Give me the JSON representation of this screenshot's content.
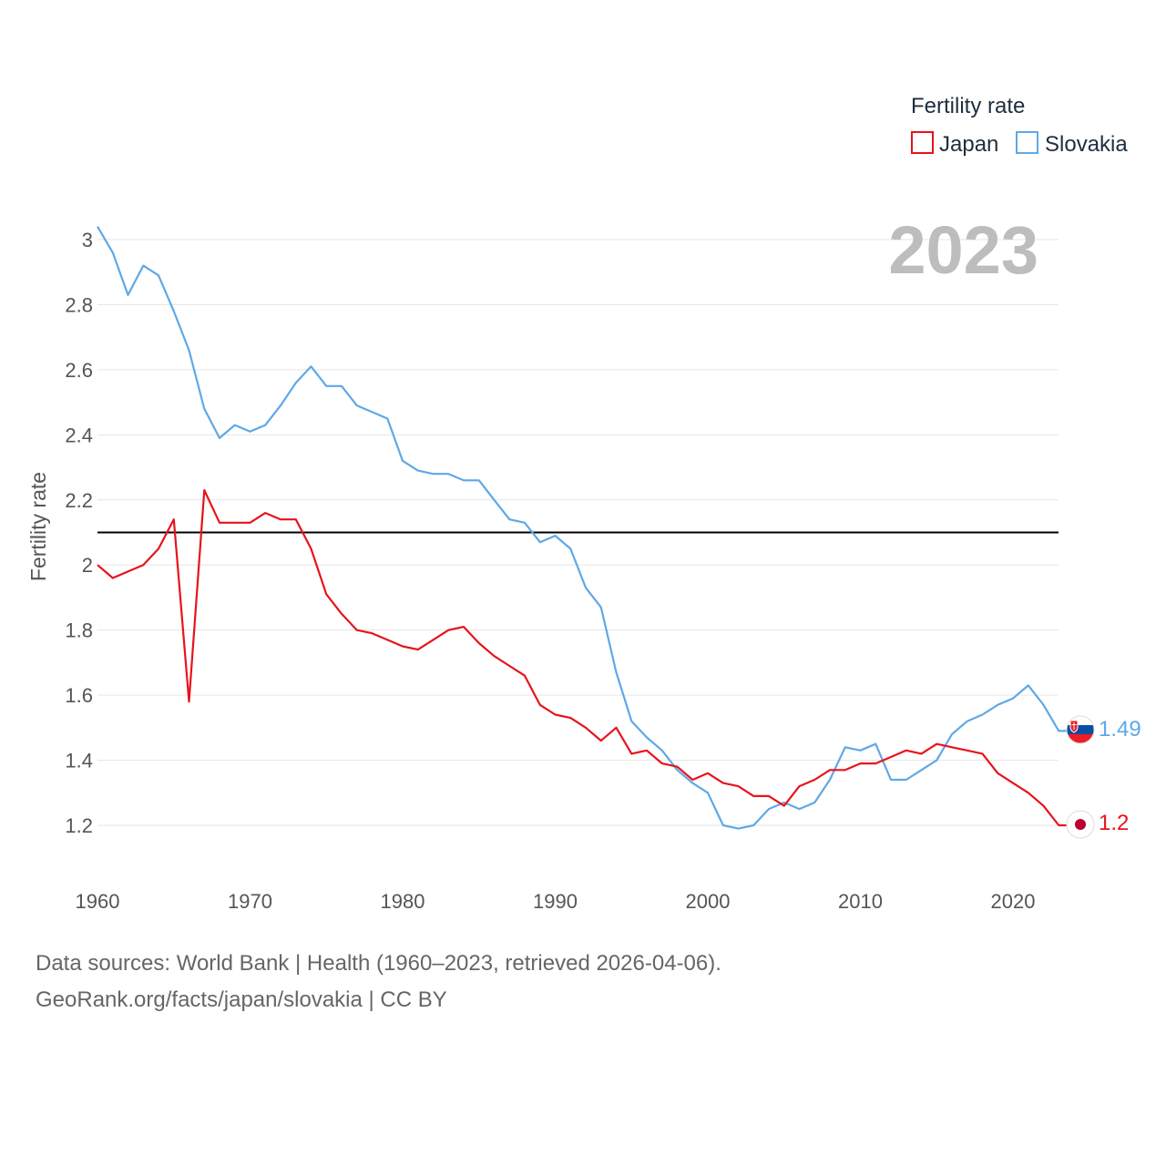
{
  "chart_data": {
    "type": "line",
    "title": "",
    "year_label": "2023",
    "ylabel": "Fertility rate",
    "xlabel": "",
    "xlim": [
      1960,
      2025
    ],
    "ylim": [
      1.05,
      3.05
    ],
    "x_ticks": [
      1960,
      1970,
      1980,
      1990,
      2000,
      2010,
      2020
    ],
    "y_ticks": [
      1.2,
      1.4,
      1.6,
      1.8,
      2,
      2.2,
      2.4,
      2.6,
      2.8,
      3
    ],
    "y_tick_labels": [
      "1.2",
      "1.4",
      "1.6",
      "1.8",
      "2",
      "2.2",
      "2.4",
      "2.6",
      "2.8",
      "3"
    ],
    "x_tick_labels": [
      "1960",
      "1970",
      "1980",
      "1990",
      "2000",
      "2010",
      "2020"
    ],
    "reference_line": {
      "value": 2.1,
      "color": "#000000"
    },
    "legend": {
      "title": "Fertility rate",
      "position": "top-right"
    },
    "x": [
      1960,
      1961,
      1962,
      1963,
      1964,
      1965,
      1966,
      1967,
      1968,
      1969,
      1970,
      1971,
      1972,
      1973,
      1974,
      1975,
      1976,
      1977,
      1978,
      1979,
      1980,
      1981,
      1982,
      1983,
      1984,
      1985,
      1986,
      1987,
      1988,
      1989,
      1990,
      1991,
      1992,
      1993,
      1994,
      1995,
      1996,
      1997,
      1998,
      1999,
      2000,
      2001,
      2002,
      2003,
      2004,
      2005,
      2006,
      2007,
      2008,
      2009,
      2010,
      2011,
      2012,
      2013,
      2014,
      2015,
      2016,
      2017,
      2018,
      2019,
      2020,
      2021,
      2022,
      2023
    ],
    "series": [
      {
        "name": "Japan",
        "color": "#e8131b",
        "end_label": "1.2",
        "values": [
          2.0,
          1.96,
          1.98,
          2.0,
          2.05,
          2.14,
          1.58,
          2.23,
          2.13,
          2.13,
          2.13,
          2.16,
          2.14,
          2.14,
          2.05,
          1.91,
          1.85,
          1.8,
          1.79,
          1.77,
          1.75,
          1.74,
          1.77,
          1.8,
          1.81,
          1.76,
          1.72,
          1.69,
          1.66,
          1.57,
          1.54,
          1.53,
          1.5,
          1.46,
          1.5,
          1.42,
          1.43,
          1.39,
          1.38,
          1.34,
          1.36,
          1.33,
          1.32,
          1.29,
          1.29,
          1.26,
          1.32,
          1.34,
          1.37,
          1.37,
          1.39,
          1.39,
          1.41,
          1.43,
          1.42,
          1.45,
          1.44,
          1.43,
          1.42,
          1.36,
          1.33,
          1.3,
          1.26,
          1.2
        ]
      },
      {
        "name": "Slovakia",
        "color": "#5fa8e6",
        "end_label": "1.49",
        "values": [
          3.04,
          2.96,
          2.83,
          2.92,
          2.89,
          2.78,
          2.66,
          2.48,
          2.39,
          2.43,
          2.41,
          2.43,
          2.49,
          2.56,
          2.61,
          2.55,
          2.55,
          2.49,
          2.47,
          2.45,
          2.32,
          2.29,
          2.28,
          2.28,
          2.26,
          2.26,
          2.2,
          2.14,
          2.13,
          2.07,
          2.09,
          2.05,
          1.93,
          1.87,
          1.67,
          1.52,
          1.47,
          1.43,
          1.37,
          1.33,
          1.3,
          1.2,
          1.19,
          1.2,
          1.25,
          1.27,
          1.25,
          1.27,
          1.34,
          1.44,
          1.43,
          1.45,
          1.34,
          1.34,
          1.37,
          1.4,
          1.48,
          1.52,
          1.54,
          1.57,
          1.59,
          1.63,
          1.57,
          1.49
        ]
      }
    ]
  },
  "footer": {
    "line1": "Data sources: World Bank | Health (1960–2023, retrieved 2026-04-06).",
    "line2": "GeoRank.org/facts/japan/slovakia | CC BY"
  },
  "flags": {
    "japan": "japan-flag-icon",
    "slovakia": "slovakia-flag-icon"
  }
}
